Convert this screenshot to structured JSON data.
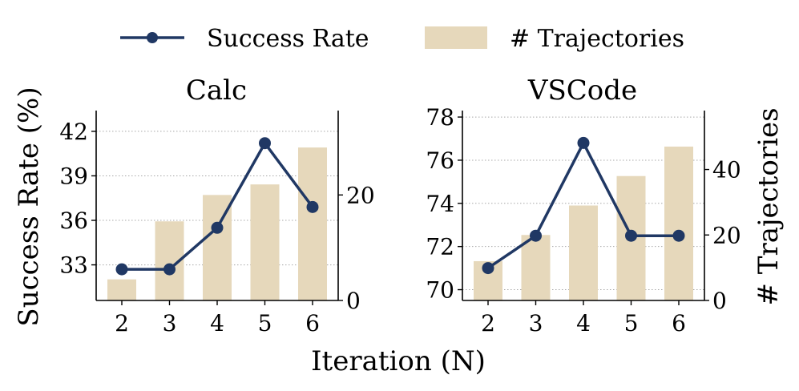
{
  "colors": {
    "line": "#203864",
    "bar": "#e6d8bb"
  },
  "legend": {
    "success_rate": "Success Rate",
    "trajectories": "# Trajectories"
  },
  "chart_data": [
    {
      "type": "bar+line",
      "title": "Calc",
      "x": [
        2,
        3,
        4,
        5,
        6
      ],
      "xticks": [
        "2",
        "3",
        "4",
        "5",
        "6"
      ],
      "xlabel": "Iteration (N)",
      "ylabel": "Success Rate (%)",
      "ylim": [
        30.6,
        43.4
      ],
      "yticks": [
        33,
        36,
        39,
        42
      ],
      "y2label": "# Trajectories",
      "y2lim": [
        0,
        36
      ],
      "y2ticks": [
        0,
        20
      ],
      "grid": true,
      "series": [
        {
          "name": "Success Rate",
          "kind": "line",
          "axis": "left",
          "values": [
            32.7,
            32.7,
            35.5,
            41.2,
            36.9
          ]
        },
        {
          "name": "# Trajectories",
          "kind": "bar",
          "axis": "right",
          "values": [
            4,
            15,
            20,
            22,
            29
          ]
        }
      ]
    },
    {
      "type": "bar+line",
      "title": "VSCode",
      "x": [
        2,
        3,
        4,
        5,
        6
      ],
      "xticks": [
        "2",
        "3",
        "4",
        "5",
        "6"
      ],
      "xlabel": "Iteration (N)",
      "ylabel": "Success Rate (%)",
      "ylim": [
        69.5,
        78.3
      ],
      "yticks": [
        70,
        72,
        74,
        76,
        78
      ],
      "y2label": "# Trajectories",
      "y2lim": [
        0,
        58
      ],
      "y2ticks": [
        0,
        20,
        40
      ],
      "grid": true,
      "series": [
        {
          "name": "Success Rate",
          "kind": "line",
          "axis": "left",
          "values": [
            71.0,
            72.5,
            76.8,
            72.5,
            72.5
          ]
        },
        {
          "name": "# Trajectories",
          "kind": "bar",
          "axis": "right",
          "values": [
            12,
            20,
            29,
            38,
            47
          ]
        }
      ]
    }
  ]
}
